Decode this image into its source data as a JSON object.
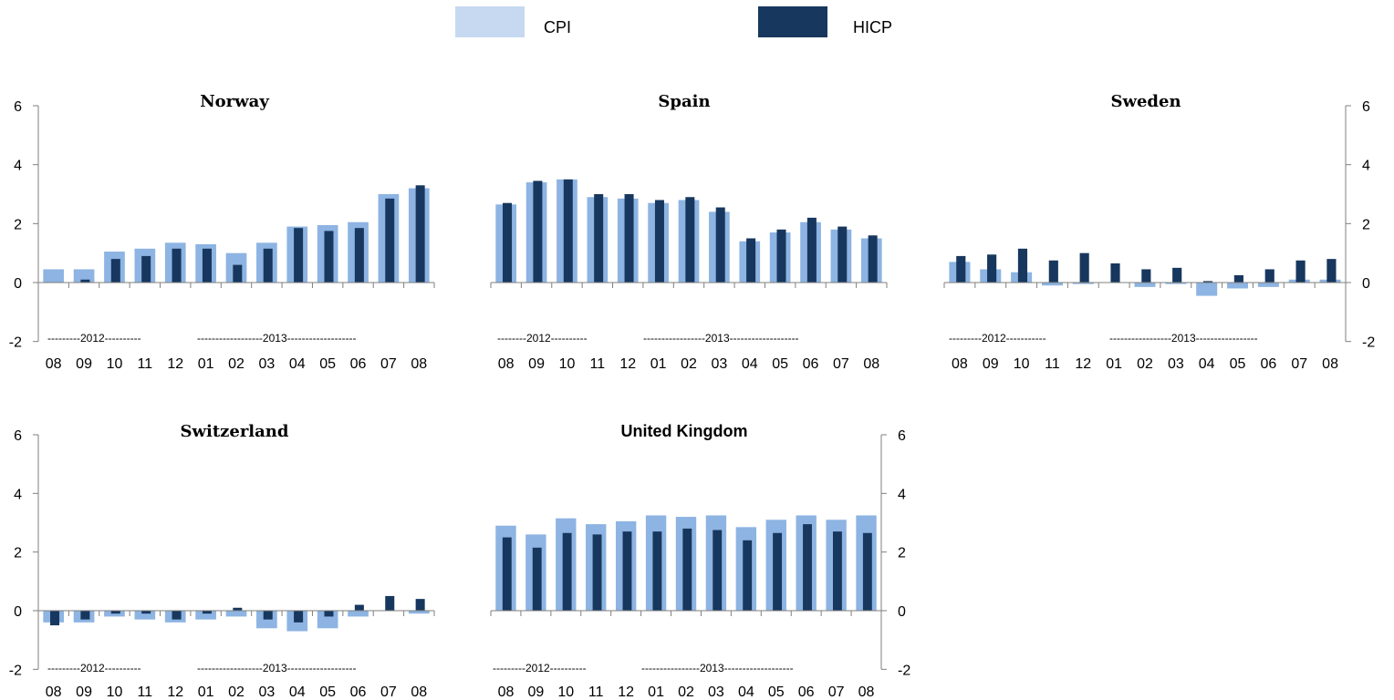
{
  "legend": [
    {
      "label": "CPI",
      "color": "#c6d9f1"
    },
    {
      "label": "HICP",
      "color": "#17375e"
    }
  ],
  "colors": {
    "cpi_bar": "#8db4e2",
    "hicp_bar": "#17375e",
    "axis": "#7f7f7f"
  },
  "chart_data": [
    {
      "type": "bar",
      "title": "Norway",
      "categories": [
        "08",
        "09",
        "10",
        "11",
        "12",
        "01",
        "02",
        "03",
        "04",
        "05",
        "06",
        "07",
        "08"
      ],
      "year_labels": [
        "---------2012----------",
        "------------------2013-------------------"
      ],
      "ylim": [
        -2,
        6
      ],
      "yticks": [
        -2,
        0,
        2,
        4,
        6
      ],
      "y_axis_side": "left",
      "series": [
        {
          "name": "CPI",
          "values": [
            0.45,
            0.45,
            1.05,
            1.15,
            1.35,
            1.3,
            1.0,
            1.35,
            1.9,
            1.95,
            2.05,
            3.0,
            3.2
          ]
        },
        {
          "name": "HICP",
          "values": [
            0.0,
            0.1,
            0.8,
            0.9,
            1.15,
            1.15,
            0.6,
            1.15,
            1.85,
            1.75,
            1.85,
            2.85,
            3.3
          ]
        }
      ]
    },
    {
      "type": "bar",
      "title": "Spain",
      "categories": [
        "08",
        "09",
        "10",
        "11",
        "12",
        "01",
        "02",
        "03",
        "04",
        "05",
        "06",
        "07",
        "08"
      ],
      "year_labels": [
        "--------2012----------",
        "-----------------2013-------------------"
      ],
      "ylim": [
        -2,
        6
      ],
      "yticks": [],
      "y_axis_side": "none",
      "series": [
        {
          "name": "CPI",
          "values": [
            2.65,
            3.4,
            3.5,
            2.9,
            2.85,
            2.7,
            2.8,
            2.4,
            1.4,
            1.7,
            2.05,
            1.8,
            1.5
          ]
        },
        {
          "name": "HICP",
          "values": [
            2.7,
            3.45,
            3.5,
            3.0,
            3.0,
            2.8,
            2.9,
            2.55,
            1.5,
            1.8,
            2.2,
            1.9,
            1.6
          ]
        }
      ]
    },
    {
      "type": "bar",
      "title": "Sweden",
      "categories": [
        "08",
        "09",
        "10",
        "11",
        "12",
        "01",
        "02",
        "03",
        "04",
        "05",
        "06",
        "07",
        "08"
      ],
      "year_labels": [
        "---------2012-----------",
        "-----------------2013-----------------"
      ],
      "ylim": [
        -2,
        6
      ],
      "yticks": [
        -2,
        0,
        2,
        4,
        6
      ],
      "y_axis_side": "right",
      "series": [
        {
          "name": "CPI",
          "values": [
            0.7,
            0.45,
            0.35,
            -0.1,
            -0.05,
            0.0,
            -0.15,
            -0.05,
            -0.45,
            -0.2,
            -0.15,
            0.1,
            0.1
          ]
        },
        {
          "name": "HICP",
          "values": [
            0.9,
            0.95,
            1.15,
            0.75,
            1.0,
            0.65,
            0.45,
            0.5,
            0.05,
            0.25,
            0.45,
            0.75,
            0.8
          ]
        }
      ]
    },
    {
      "type": "bar",
      "title": "Switzerland",
      "categories": [
        "08",
        "09",
        "10",
        "11",
        "12",
        "01",
        "02",
        "03",
        "04",
        "05",
        "06",
        "07",
        "08"
      ],
      "year_labels": [
        "---------2012----------",
        "------------------2013-------------------"
      ],
      "ylim": [
        -2,
        6
      ],
      "yticks": [
        -2,
        0,
        2,
        4,
        6
      ],
      "y_axis_side": "left",
      "series": [
        {
          "name": "CPI",
          "values": [
            -0.4,
            -0.4,
            -0.2,
            -0.3,
            -0.4,
            -0.3,
            -0.2,
            -0.6,
            -0.7,
            -0.6,
            -0.2,
            0.0,
            -0.1
          ]
        },
        {
          "name": "HICP",
          "values": [
            -0.5,
            -0.3,
            -0.1,
            -0.1,
            -0.3,
            -0.1,
            0.1,
            -0.3,
            -0.4,
            -0.2,
            0.2,
            0.5,
            0.4
          ]
        }
      ]
    },
    {
      "type": "bar",
      "title": "United Kingdom",
      "categories": [
        "08",
        "09",
        "10",
        "11",
        "12",
        "01",
        "02",
        "03",
        "04",
        "05",
        "06",
        "07",
        "08"
      ],
      "year_labels": [
        "---------2012----------",
        "----------------2013-------------------"
      ],
      "ylim": [
        -2,
        6
      ],
      "yticks": [
        -2,
        0,
        2,
        4,
        6
      ],
      "y_axis_side": "right",
      "series": [
        {
          "name": "CPI",
          "values": [
            2.9,
            2.6,
            3.15,
            2.95,
            3.05,
            3.25,
            3.2,
            3.25,
            2.85,
            3.1,
            3.25,
            3.1,
            3.25
          ]
        },
        {
          "name": "HICP",
          "values": [
            2.5,
            2.15,
            2.65,
            2.6,
            2.7,
            2.7,
            2.8,
            2.75,
            2.4,
            2.65,
            2.95,
            2.7,
            2.65
          ]
        }
      ]
    }
  ]
}
